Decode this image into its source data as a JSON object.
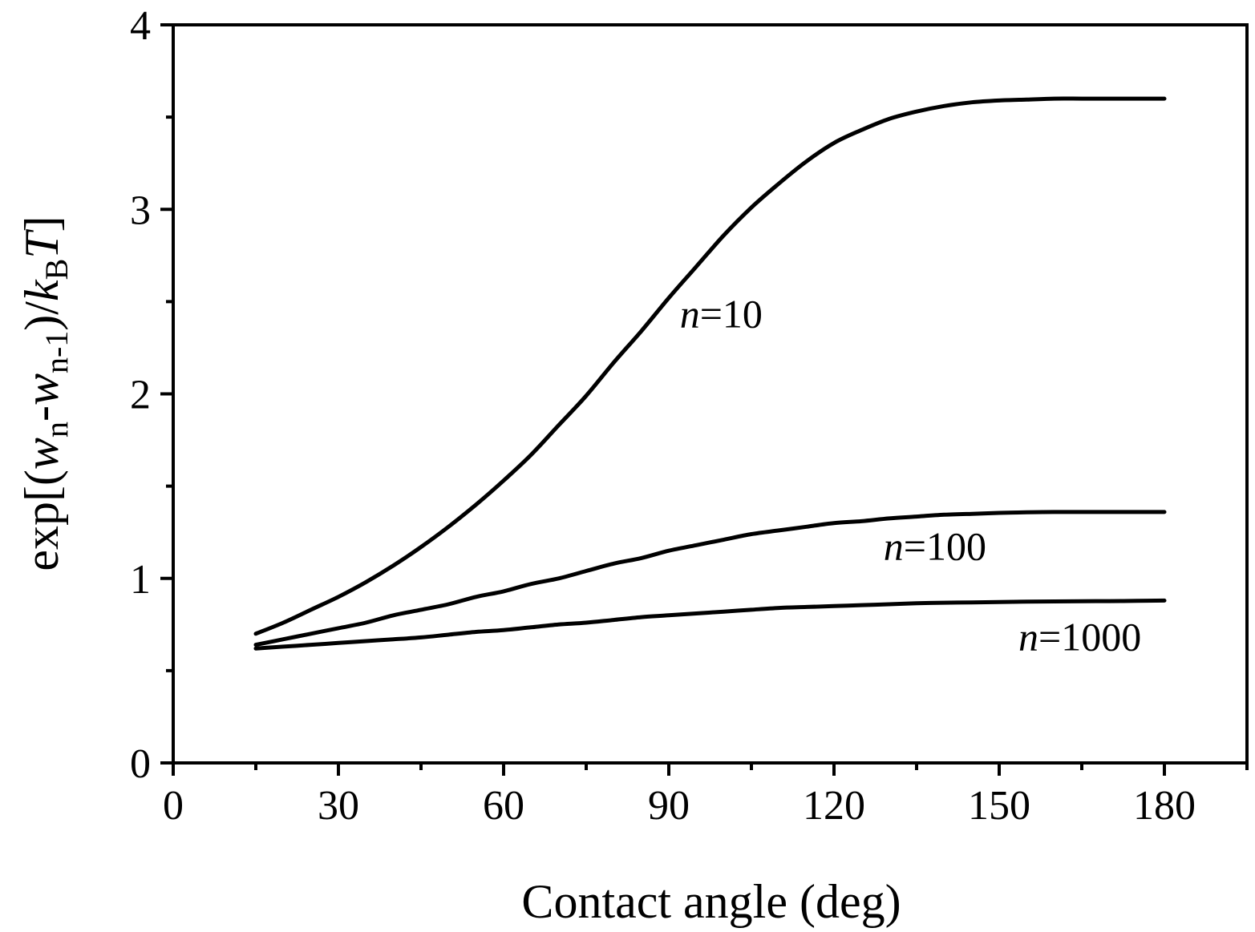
{
  "chart_data": {
    "type": "line",
    "title": "",
    "xlabel": "Contact angle (deg)",
    "ylabel": {
      "prefix": "exp[(",
      "w1": "w",
      "s1": "n",
      "minus": "-",
      "w2": "w",
      "s2": "n-1",
      "mid": ")/",
      "k": "k",
      "s3": "B",
      "T": "T",
      "suffix": "]"
    },
    "xlim": [
      0,
      195
    ],
    "ylim": [
      0,
      4
    ],
    "x_major_ticks": [
      0,
      30,
      60,
      90,
      120,
      150,
      180
    ],
    "x_minor_ticks": [
      15,
      45,
      75,
      105,
      135,
      165,
      195
    ],
    "y_major_ticks": [
      0,
      1,
      2,
      3,
      4
    ],
    "y_minor_ticks": [
      0.5,
      1.5,
      2.5,
      3.5
    ],
    "grid": false,
    "legend": "none",
    "series": [
      {
        "x": [
          15,
          20,
          25,
          30,
          35,
          40,
          45,
          50,
          55,
          60,
          65,
          70,
          75,
          80,
          85,
          90,
          95,
          100,
          105,
          110,
          115,
          120,
          125,
          130,
          135,
          140,
          145,
          150,
          155,
          160,
          165,
          170,
          175,
          180
        ],
        "values": [
          0.7,
          0.76,
          0.83,
          0.9,
          0.98,
          1.07,
          1.17,
          1.28,
          1.4,
          1.53,
          1.67,
          1.83,
          1.99,
          2.17,
          2.34,
          2.52,
          2.69,
          2.86,
          3.01,
          3.14,
          3.26,
          3.36,
          3.43,
          3.49,
          3.53,
          3.56,
          3.58,
          3.59,
          3.595,
          3.6,
          3.6,
          3.6,
          3.6,
          3.6
        ],
        "label": {
          "n": "n",
          "eq": "=10",
          "x": 92,
          "y": 2.36
        }
      },
      {
        "x": [
          15,
          20,
          25,
          30,
          35,
          40,
          45,
          50,
          55,
          60,
          65,
          70,
          75,
          80,
          85,
          90,
          95,
          100,
          105,
          110,
          115,
          120,
          125,
          130,
          135,
          140,
          145,
          150,
          155,
          160,
          165,
          170,
          175,
          180
        ],
        "values": [
          0.64,
          0.67,
          0.7,
          0.73,
          0.76,
          0.8,
          0.83,
          0.86,
          0.9,
          0.93,
          0.97,
          1.0,
          1.04,
          1.08,
          1.11,
          1.15,
          1.18,
          1.21,
          1.24,
          1.26,
          1.28,
          1.3,
          1.31,
          1.325,
          1.335,
          1.345,
          1.35,
          1.355,
          1.358,
          1.36,
          1.36,
          1.36,
          1.36,
          1.36
        ],
        "label": {
          "n": "n",
          "eq": "=100",
          "x": 129,
          "y": 1.1
        }
      },
      {
        "x": [
          15,
          20,
          25,
          30,
          35,
          40,
          45,
          50,
          55,
          60,
          65,
          70,
          75,
          80,
          85,
          90,
          95,
          100,
          105,
          110,
          115,
          120,
          125,
          130,
          135,
          140,
          145,
          150,
          155,
          160,
          165,
          170,
          175,
          180
        ],
        "values": [
          0.62,
          0.63,
          0.64,
          0.65,
          0.66,
          0.67,
          0.68,
          0.695,
          0.71,
          0.72,
          0.735,
          0.75,
          0.76,
          0.775,
          0.79,
          0.8,
          0.81,
          0.82,
          0.83,
          0.84,
          0.845,
          0.85,
          0.855,
          0.86,
          0.865,
          0.868,
          0.87,
          0.872,
          0.874,
          0.875,
          0.876,
          0.877,
          0.878,
          0.88
        ],
        "label": {
          "n": "n",
          "eq": "=1000",
          "x": 153.5,
          "y": 0.61
        }
      }
    ]
  }
}
